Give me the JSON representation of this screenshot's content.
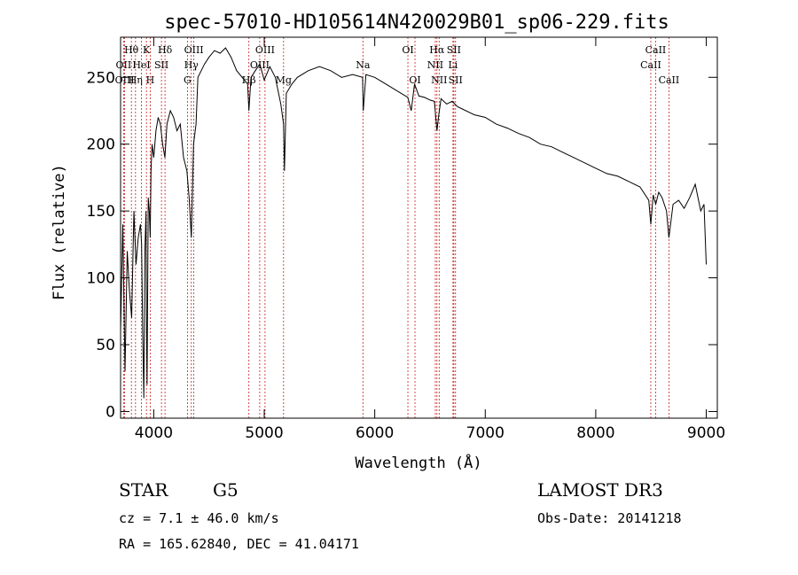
{
  "chart_data": {
    "type": "line",
    "title": "spec-57010-HD105614N420029B01_sp06-229.fits",
    "xlabel": "Wavelength (Å)",
    "ylabel": "Flux (relative)",
    "xlim": [
      3700,
      9100
    ],
    "ylim": [
      -5,
      280
    ],
    "xticks": [
      4000,
      5000,
      6000,
      7000,
      8000,
      9000
    ],
    "yticks": [
      0,
      50,
      100,
      150,
      200,
      250
    ],
    "grid": false,
    "series": [
      {
        "values_note": "",
        "x": [
          3700,
          3720,
          3740,
          3760,
          3780,
          3800,
          3820,
          3840,
          3860,
          3880,
          3890,
          3900,
          3910,
          3920,
          3930,
          3935,
          3940,
          3950,
          3960,
          3968,
          3975,
          3985,
          4000,
          4020,
          4040,
          4060,
          4080,
          4101,
          4120,
          4150,
          4180,
          4210,
          4240,
          4270,
          4300,
          4320,
          4340,
          4360,
          4383,
          4400,
          4430,
          4460,
          4500,
          4550,
          4600,
          4650,
          4700,
          4750,
          4800,
          4850,
          4861,
          4880,
          4920,
          4960,
          5000,
          5050,
          5100,
          5150,
          5175,
          5183,
          5200,
          5250,
          5300,
          5400,
          5500,
          5600,
          5700,
          5800,
          5890,
          5896,
          5920,
          6000,
          6100,
          6200,
          6300,
          6330,
          6360,
          6400,
          6450,
          6500,
          6540,
          6563,
          6580,
          6600,
          6650,
          6700,
          6750,
          6800,
          6900,
          7000,
          7100,
          7200,
          7300,
          7400,
          7500,
          7600,
          7700,
          7800,
          7900,
          8000,
          8100,
          8200,
          8300,
          8400,
          8480,
          8498,
          8520,
          8542,
          8570,
          8600,
          8640,
          8662,
          8700,
          8750,
          8800,
          8850,
          8900,
          8950,
          8980,
          9000
        ],
        "y": [
          60,
          140,
          30,
          120,
          90,
          70,
          150,
          110,
          130,
          140,
          125,
          60,
          10,
          120,
          150,
          60,
          20,
          160,
          150,
          130,
          180,
          200,
          190,
          210,
          220,
          215,
          200,
          190,
          215,
          225,
          220,
          210,
          215,
          190,
          180,
          160,
          130,
          200,
          215,
          250,
          255,
          260,
          265,
          270,
          268,
          272,
          265,
          255,
          250,
          245,
          225,
          250,
          255,
          260,
          248,
          258,
          250,
          230,
          215,
          180,
          238,
          245,
          250,
          255,
          258,
          255,
          250,
          252,
          250,
          225,
          252,
          250,
          245,
          240,
          235,
          225,
          245,
          236,
          235,
          233,
          232,
          210,
          222,
          234,
          230,
          232,
          228,
          226,
          222,
          220,
          215,
          212,
          208,
          205,
          200,
          198,
          194,
          190,
          186,
          182,
          178,
          176,
          172,
          168,
          158,
          140,
          162,
          155,
          164,
          160,
          150,
          130,
          155,
          158,
          152,
          160,
          170,
          150,
          155,
          110
        ]
      }
    ],
    "spectral_lines": [
      {
        "label": "Hθ",
        "x": 3798,
        "row": 1
      },
      {
        "label": "OII",
        "x": 3727,
        "row": 2
      },
      {
        "label": "OIII",
        "x": 3737,
        "row": 3
      },
      {
        "label": "K",
        "x": 3934,
        "row": 1
      },
      {
        "label": "HeI",
        "x": 3889,
        "row": 2
      },
      {
        "label": "Hη",
        "x": 3835,
        "row": 3
      },
      {
        "label": "SII",
        "x": 4070,
        "row": 2
      },
      {
        "label": "Hδ",
        "x": 4102,
        "row": 1
      },
      {
        "label": "H",
        "x": 3968,
        "row": 3
      },
      {
        "label": "OIII",
        "x": 4363,
        "row": 1
      },
      {
        "label": "Hγ",
        "x": 4340,
        "row": 2
      },
      {
        "label": "G",
        "x": 4305,
        "row": 3
      },
      {
        "label": "OIII",
        "x": 5007,
        "row": 1
      },
      {
        "label": "OIII",
        "x": 4959,
        "row": 2
      },
      {
        "label": "Hβ",
        "x": 4861,
        "row": 3
      },
      {
        "label": "Mg",
        "x": 5175,
        "row": 3
      },
      {
        "label": "Na",
        "x": 5893,
        "row": 2
      },
      {
        "label": "OI",
        "x": 6300,
        "row": 1
      },
      {
        "label": "OI",
        "x": 6364,
        "row": 3
      },
      {
        "label": "Hα",
        "x": 6563,
        "row": 1
      },
      {
        "label": "SII",
        "x": 6716,
        "row": 1
      },
      {
        "label": "NII",
        "x": 6548,
        "row": 2
      },
      {
        "label": "Li",
        "x": 6708,
        "row": 2
      },
      {
        "label": "NII",
        "x": 6583,
        "row": 3
      },
      {
        "label": "SII",
        "x": 6731,
        "row": 3
      },
      {
        "label": "CaII",
        "x": 8542,
        "row": 1
      },
      {
        "label": "CaII",
        "x": 8498,
        "row": 2
      },
      {
        "label": "CaII",
        "x": 8662,
        "row": 3
      }
    ]
  },
  "info": {
    "object_type": "STAR",
    "subclass": "G5",
    "survey": "LAMOST DR3",
    "cz": "cz = 7.1 ± 46.0 km/s",
    "obs_date": "Obs-Date: 20141218",
    "coords": "RA = 165.62840, DEC =  41.04171"
  },
  "colors": {
    "line_marker": "#c81e1e",
    "spectrum": "#000000"
  }
}
